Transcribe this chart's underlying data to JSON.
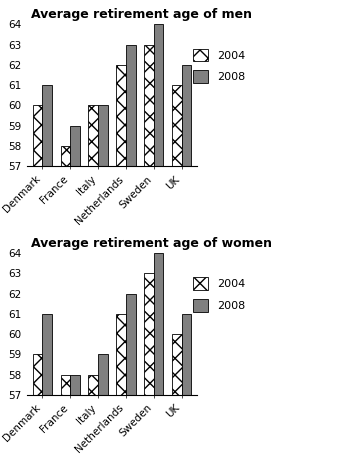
{
  "countries": [
    "Denmark",
    "France",
    "Italy",
    "Netherlands",
    "Sweden",
    "UK"
  ],
  "men_2004": [
    60,
    58,
    60,
    62,
    63,
    61
  ],
  "men_2008": [
    61,
    59,
    60,
    63,
    64,
    62
  ],
  "women_2004": [
    59,
    58,
    58,
    61,
    63,
    60
  ],
  "women_2008": [
    61,
    58,
    59,
    62,
    64,
    61
  ],
  "title_men": "Average retirement age of men",
  "title_women": "Average retirement age of women",
  "ymin": 57,
  "ymax": 64,
  "yticks": [
    57,
    58,
    59,
    60,
    61,
    62,
    63,
    64
  ],
  "legend_2004": "2004",
  "legend_2008": "2008",
  "hatch_2004": "xx",
  "color_2004": "#ffffff",
  "color_2008": "#808080",
  "bar_width": 0.35,
  "font_size_title": 9,
  "font_size_tick": 7.5,
  "font_size_legend": 8
}
